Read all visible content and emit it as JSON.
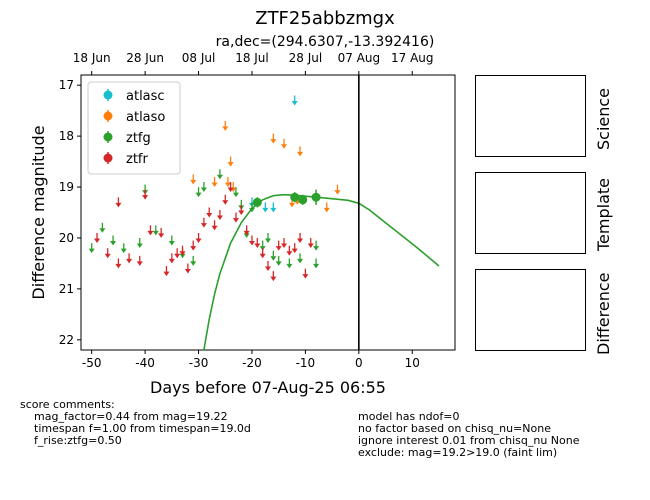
{
  "header": {
    "title": "ZTF25abbzmgx",
    "subtitle": "ra,dec=(294.6307,-13.392416)"
  },
  "chart_data": {
    "type": "scatter",
    "xlabel": "Days before 07-Aug-25 06:55",
    "ylabel": "Difference magnitude",
    "xlim": [
      -52,
      18
    ],
    "ylim": [
      22.2,
      16.8
    ],
    "y_inverted": true,
    "x_ticks": [
      -50,
      -40,
      -30,
      -20,
      -10,
      0,
      10
    ],
    "y_ticks": [
      17,
      18,
      19,
      20,
      21,
      22
    ],
    "top_axis_ticks": [
      {
        "label": "18 Jun",
        "x": -50
      },
      {
        "label": "28 Jun",
        "x": -40
      },
      {
        "label": "08 Jul",
        "x": -30
      },
      {
        "label": "18 Jul",
        "x": -20
      },
      {
        "label": "28 Jul",
        "x": -10
      },
      {
        "label": "07 Aug",
        "x": 0
      },
      {
        "label": "17 Aug",
        "x": 10
      }
    ],
    "vline_x": 0,
    "legend_position": "upper-left",
    "series": [
      {
        "name": "atlasc",
        "color": "#17becf",
        "marker": "arrow",
        "points": [
          [
            -12,
            17.3
          ],
          [
            -20,
            19.3
          ],
          [
            -17.5,
            19.4
          ],
          [
            -16,
            19.4
          ]
        ]
      },
      {
        "name": "atlaso",
        "color": "#ff7f0e",
        "marker": "arrow",
        "points": [
          [
            -25,
            17.8
          ],
          [
            -24,
            18.5
          ],
          [
            -16,
            18.05
          ],
          [
            -14,
            18.15
          ],
          [
            -11,
            18.3
          ],
          [
            -31,
            18.85
          ],
          [
            -27,
            18.9
          ],
          [
            -24.5,
            18.9
          ],
          [
            -23.5,
            19.0
          ],
          [
            -12.5,
            19.3
          ],
          [
            -11.5,
            19.25
          ],
          [
            -6,
            19.4
          ],
          [
            -4,
            19.05
          ]
        ]
      },
      {
        "name": "ztfg",
        "color": "#2ca02c",
        "marker": "arrow",
        "points": [
          [
            -50,
            20.2
          ],
          [
            -48,
            19.8
          ],
          [
            -46,
            20.05
          ],
          [
            -44,
            20.2
          ],
          [
            -41,
            20.1
          ],
          [
            -40,
            19.05
          ],
          [
            -38,
            19.85
          ],
          [
            -35,
            20.05
          ],
          [
            -33,
            20.3
          ],
          [
            -31,
            20.45
          ],
          [
            -30,
            19.1
          ],
          [
            -29,
            19.0
          ],
          [
            -26,
            18.75
          ],
          [
            -23,
            19.1
          ],
          [
            -22,
            19.35
          ],
          [
            -21,
            19.9
          ],
          [
            -20,
            19.4
          ],
          [
            -18,
            20.15
          ],
          [
            -17,
            20.0
          ],
          [
            -16,
            20.35
          ],
          [
            -15,
            20.45
          ],
          [
            -13,
            20.5
          ],
          [
            -11,
            20.4
          ],
          [
            -8,
            20.5
          ],
          [
            -8,
            20.15
          ]
        ]
      },
      {
        "name": "ztfg detections",
        "color": "#2ca02c",
        "marker": "dot",
        "points": [
          [
            -19,
            19.3,
            0.1
          ],
          [
            -12,
            19.2,
            0.1
          ],
          [
            -10.5,
            19.25,
            0.1
          ],
          [
            -8,
            19.2,
            0.15
          ]
        ]
      },
      {
        "name": "ztfr",
        "color": "#d62728",
        "marker": "arrow",
        "points": [
          [
            -45,
            19.3
          ],
          [
            -49,
            20.0
          ],
          [
            -47,
            20.3
          ],
          [
            -45,
            20.5
          ],
          [
            -43,
            20.4
          ],
          [
            -41,
            20.45
          ],
          [
            -40,
            19.15
          ],
          [
            -39,
            19.85
          ],
          [
            -37,
            19.9
          ],
          [
            -36,
            20.65
          ],
          [
            -35,
            20.4
          ],
          [
            -34,
            20.3
          ],
          [
            -33,
            20.25
          ],
          [
            -32,
            20.6
          ],
          [
            -31,
            20.15
          ],
          [
            -30,
            20.0
          ],
          [
            -29,
            19.7
          ],
          [
            -28,
            19.5
          ],
          [
            -27,
            19.75
          ],
          [
            -26,
            19.55
          ],
          [
            -25,
            19.25
          ],
          [
            -24,
            19.0
          ],
          [
            -23,
            19.6
          ],
          [
            -22,
            19.45
          ],
          [
            -21,
            19.85
          ],
          [
            -20,
            20.05
          ],
          [
            -19,
            20.1
          ],
          [
            -18,
            20.3
          ],
          [
            -17,
            20.55
          ],
          [
            -16,
            20.75
          ],
          [
            -15,
            20.15
          ],
          [
            -14,
            20.1
          ],
          [
            -13,
            20.25
          ],
          [
            -12,
            20.2
          ],
          [
            -10,
            20.7
          ],
          [
            -9,
            20.1
          ],
          [
            -11,
            20.0
          ]
        ]
      }
    ],
    "model_curve": {
      "color": "#2ca02c",
      "points": [
        [
          -29,
          22.2
        ],
        [
          -28,
          21.6
        ],
        [
          -27,
          21.1
        ],
        [
          -26,
          20.7
        ],
        [
          -24,
          20.1
        ],
        [
          -22,
          19.7
        ],
        [
          -20,
          19.42
        ],
        [
          -18,
          19.25
        ],
        [
          -16,
          19.17
        ],
        [
          -14,
          19.15
        ],
        [
          -12,
          19.16
        ],
        [
          -10,
          19.18
        ],
        [
          -6,
          19.22
        ],
        [
          -2,
          19.26
        ],
        [
          0,
          19.32
        ],
        [
          2,
          19.45
        ],
        [
          5,
          19.7
        ],
        [
          8,
          19.95
        ],
        [
          11,
          20.2
        ],
        [
          15,
          20.55
        ]
      ]
    }
  },
  "side_panels": {
    "science": "Science",
    "template": "Template",
    "difference": "Difference"
  },
  "comments": {
    "left_header": "score comments:",
    "left_lines": [
      "mag_factor=0.44 from mag=19.22",
      "timespan f=1.00 from timespan=19.0d",
      "f_rise:ztfg=0.50"
    ],
    "right_lines": [
      "model has ndof=0",
      "no factor based on chisq_nu=None",
      "ignore interest 0.01 from chisq_nu None",
      "exclude: mag=19.2>19.0 (faint lim)"
    ]
  }
}
